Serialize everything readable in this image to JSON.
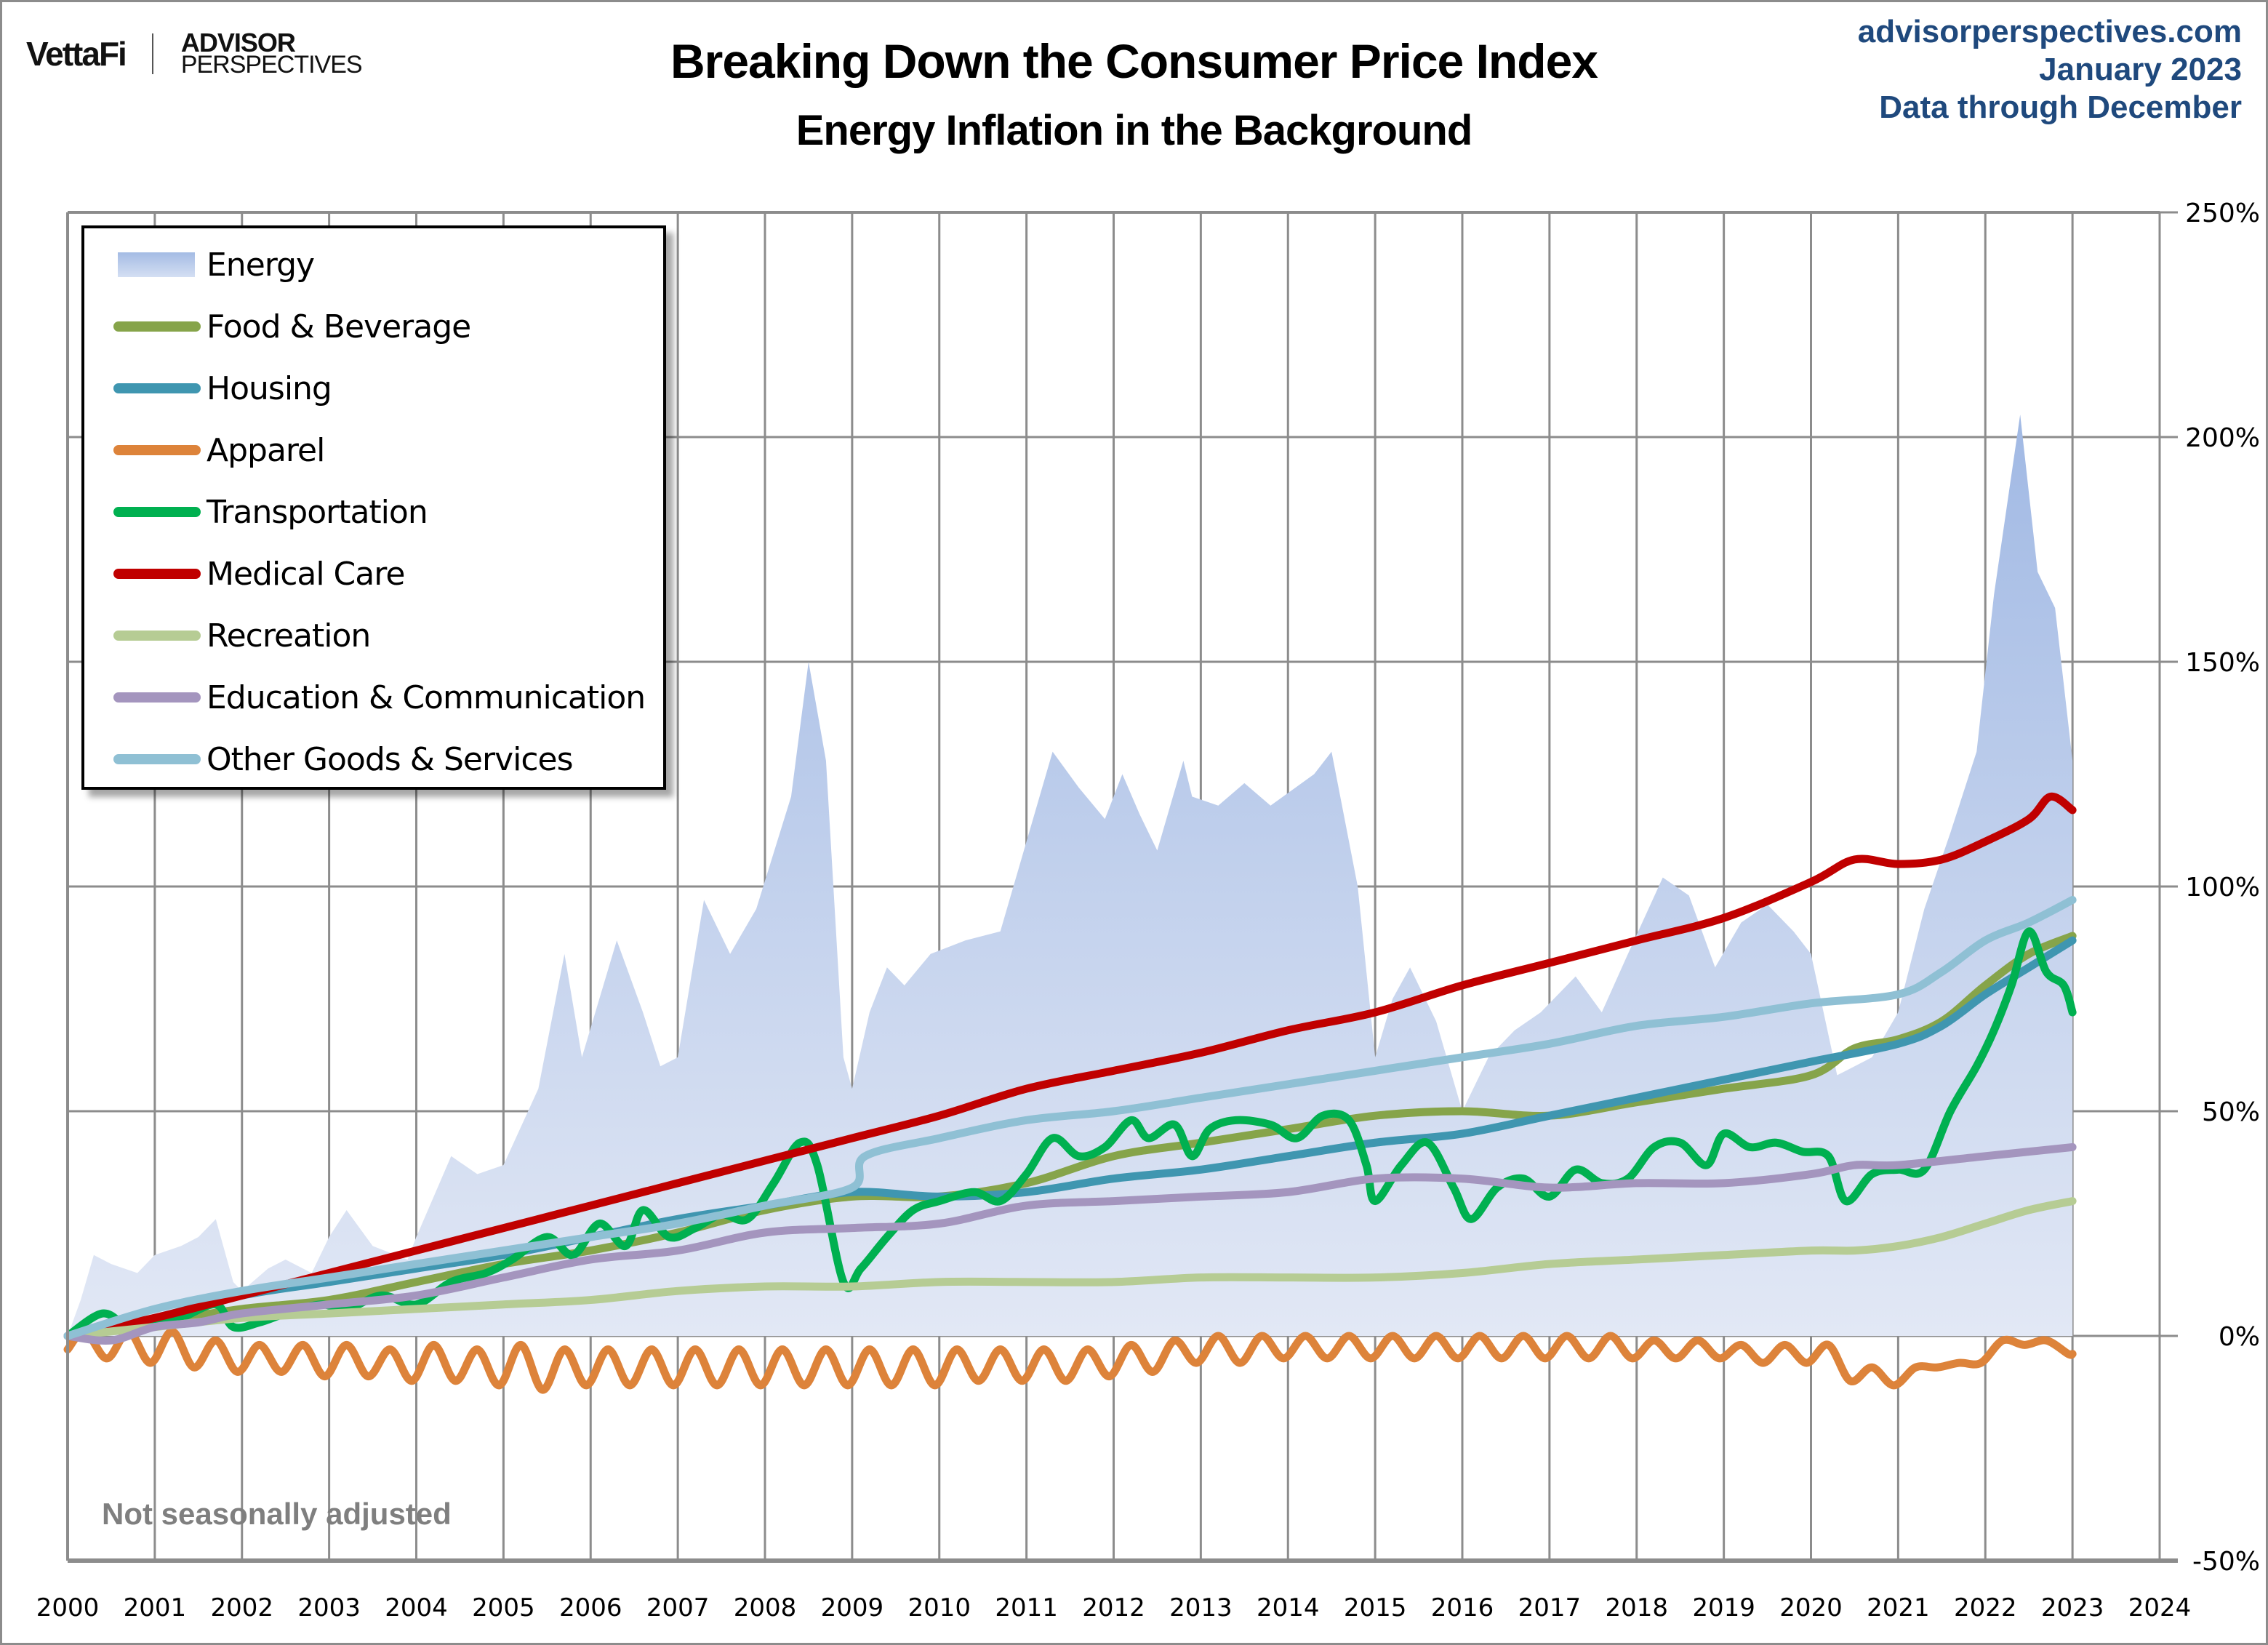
{
  "branding": {
    "vettafi": "VettaFi",
    "advisor_line1": "ADVISOR",
    "advisor_line2": "PERSPECTIVES"
  },
  "header": {
    "title": "Breaking Down the Consumer Price Index",
    "subtitle": "Energy Inflation in the Background",
    "source_lines": [
      "advisorperspectives.com",
      "January 2023",
      "Data through December"
    ]
  },
  "note": "Not seasonally adjusted",
  "chart_data": {
    "type": "line",
    "title": "Breaking Down the Consumer Price Index",
    "subtitle": "Energy Inflation in the Background",
    "xlabel": "",
    "ylabel": "",
    "xlim": [
      2000,
      2024
    ],
    "ylim": [
      -50,
      250
    ],
    "x_ticks": [
      "2000",
      "2001",
      "2002",
      "2003",
      "2004",
      "2005",
      "2006",
      "2007",
      "2008",
      "2009",
      "2010",
      "2011",
      "2012",
      "2013",
      "2014",
      "2015",
      "2016",
      "2017",
      "2018",
      "2019",
      "2020",
      "2021",
      "2022",
      "2023",
      "2024"
    ],
    "y_ticks": [
      "250%",
      "200%",
      "150%",
      "100%",
      "50%",
      "0%",
      "-50%"
    ],
    "y_tick_values": [
      250,
      200,
      150,
      100,
      50,
      0,
      -50
    ],
    "grid": true,
    "legend_position": "top-left",
    "series": [
      {
        "name": "Energy",
        "type": "area",
        "color": "#a4bbe4",
        "x": [
          2000,
          2000.15,
          2000.3,
          2000.5,
          2000.8,
          2001.0,
          2001.3,
          2001.5,
          2001.7,
          2001.9,
          2002.0,
          2002.3,
          2002.5,
          2002.8,
          2003.0,
          2003.2,
          2003.5,
          2003.9,
          2004.0,
          2004.4,
          2004.7,
          2005.0,
          2005.4,
          2005.7,
          2005.9,
          2006.3,
          2006.6,
          2006.8,
          2007.0,
          2007.3,
          2007.6,
          2007.9,
          2008.3,
          2008.5,
          2008.7,
          2008.9,
          2009.0,
          2009.2,
          2009.4,
          2009.6,
          2009.9,
          2010.3,
          2010.7,
          2011.0,
          2011.3,
          2011.6,
          2011.9,
          2012.1,
          2012.3,
          2012.5,
          2012.8,
          2012.9,
          2013.2,
          2013.5,
          2013.8,
          2014.3,
          2014.5,
          2014.8,
          2015.0,
          2015.2,
          2015.4,
          2015.7,
          2016.0,
          2016.3,
          2016.6,
          2016.9,
          2017.3,
          2017.6,
          2017.9,
          2018.3,
          2018.6,
          2018.9,
          2019.2,
          2019.5,
          2019.8,
          2020.0,
          2020.3,
          2020.7,
          2021.0,
          2021.3,
          2021.6,
          2021.9,
          2022.1,
          2022.4,
          2022.6,
          2022.8,
          2023.0
        ],
        "values": [
          0,
          8,
          18,
          16,
          14,
          18,
          20,
          22,
          26,
          12,
          10,
          15,
          17,
          14,
          22,
          28,
          20,
          17,
          22,
          40,
          36,
          38,
          55,
          85,
          62,
          88,
          72,
          60,
          62,
          97,
          85,
          95,
          120,
          150,
          128,
          62,
          55,
          72,
          82,
          78,
          85,
          88,
          90,
          110,
          130,
          122,
          115,
          125,
          116,
          108,
          128,
          120,
          118,
          123,
          118,
          125,
          130,
          100,
          62,
          75,
          82,
          70,
          50,
          62,
          68,
          72,
          80,
          72,
          85,
          102,
          98,
          82,
          92,
          96,
          90,
          85,
          58,
          62,
          72,
          95,
          112,
          130,
          165,
          205,
          170,
          162,
          128
        ]
      },
      {
        "name": "Food & Beverage",
        "type": "line",
        "color": "#86a44a",
        "x": [
          2000,
          2001,
          2002,
          2003,
          2004,
          2005,
          2006,
          2007,
          2008,
          2009,
          2010,
          2011,
          2012,
          2013,
          2014,
          2015,
          2016,
          2017,
          2018,
          2019,
          2020,
          2020.5,
          2021,
          2021.5,
          2022,
          2022.5,
          2023
        ],
        "values": [
          0,
          3,
          6,
          8,
          12,
          16,
          19,
          23,
          28,
          31,
          31,
          34,
          40,
          43,
          46,
          49,
          50,
          49,
          52,
          55,
          58,
          64,
          66,
          70,
          78,
          85,
          89
        ]
      },
      {
        "name": "Housing",
        "type": "line",
        "color": "#3f96b0",
        "x": [
          2000,
          2001,
          2002,
          2003,
          2004,
          2005,
          2006,
          2007,
          2008,
          2009,
          2010,
          2011,
          2012,
          2013,
          2014,
          2015,
          2016,
          2017,
          2018,
          2019,
          2020,
          2021,
          2021.5,
          2022,
          2022.5,
          2023
        ],
        "values": [
          0,
          4,
          9,
          12,
          15,
          18,
          22,
          26,
          29,
          32,
          31,
          32,
          35,
          37,
          40,
          43,
          45,
          49,
          53,
          57,
          61,
          65,
          69,
          76,
          82,
          88
        ]
      },
      {
        "name": "Apparel",
        "type": "line",
        "color": "#dd833a",
        "x": [
          2000,
          2000.2,
          2000.45,
          2000.7,
          2000.95,
          2001.2,
          2001.45,
          2001.7,
          2001.95,
          2002.2,
          2002.45,
          2002.7,
          2002.95,
          2003.2,
          2003.45,
          2003.7,
          2003.95,
          2004.2,
          2004.45,
          2004.7,
          2004.95,
          2005.2,
          2005.45,
          2005.7,
          2005.95,
          2006.2,
          2006.45,
          2006.7,
          2006.95,
          2007.2,
          2007.45,
          2007.7,
          2007.95,
          2008.2,
          2008.45,
          2008.7,
          2008.95,
          2009.2,
          2009.45,
          2009.7,
          2009.95,
          2010.2,
          2010.45,
          2010.7,
          2010.95,
          2011.2,
          2011.45,
          2011.7,
          2011.95,
          2012.2,
          2012.45,
          2012.7,
          2012.95,
          2013.2,
          2013.45,
          2013.7,
          2013.95,
          2014.2,
          2014.45,
          2014.7,
          2014.95,
          2015.2,
          2015.45,
          2015.7,
          2015.95,
          2016.2,
          2016.45,
          2016.7,
          2016.95,
          2017.2,
          2017.45,
          2017.7,
          2017.95,
          2018.2,
          2018.45,
          2018.7,
          2018.95,
          2019.2,
          2019.45,
          2019.7,
          2019.95,
          2020.2,
          2020.45,
          2020.7,
          2020.95,
          2021.2,
          2021.45,
          2021.7,
          2021.95,
          2022.2,
          2022.45,
          2022.7,
          2022.95,
          2023
        ],
        "values": [
          -3,
          1,
          -5,
          1,
          -6,
          1,
          -7,
          -1,
          -8,
          -2,
          -8,
          -2,
          -9,
          -2,
          -9,
          -3,
          -10,
          -2,
          -10,
          -3,
          -11,
          -2,
          -12,
          -3,
          -11,
          -3,
          -11,
          -3,
          -11,
          -3,
          -11,
          -3,
          -11,
          -3,
          -11,
          -3,
          -11,
          -3,
          -11,
          -3,
          -11,
          -3,
          -10,
          -3,
          -10,
          -3,
          -10,
          -3,
          -9,
          -2,
          -8,
          -1,
          -6,
          0,
          -6,
          0,
          -5,
          0,
          -5,
          0,
          -5,
          0,
          -5,
          0,
          -5,
          0,
          -5,
          0,
          -5,
          0,
          -5,
          0,
          -5,
          -1,
          -5,
          -1,
          -5,
          -2,
          -6,
          -2,
          -6,
          -2,
          -10,
          -7,
          -11,
          -7,
          -7,
          -6,
          -6,
          -1,
          -2,
          -1,
          -4,
          -4
        ]
      },
      {
        "name": "Transportation",
        "type": "line",
        "color": "#00b050",
        "x": [
          2000,
          2000.4,
          2000.7,
          2001.0,
          2001.3,
          2001.7,
          2001.9,
          2002.2,
          2002.5,
          2002.9,
          2003.2,
          2003.6,
          2004.0,
          2004.4,
          2004.8,
          2005.1,
          2005.5,
          2005.8,
          2006.1,
          2006.4,
          2006.6,
          2006.9,
          2007.2,
          2007.5,
          2007.8,
          2008.1,
          2008.4,
          2008.6,
          2008.9,
          2009.1,
          2009.4,
          2009.7,
          2010.0,
          2010.4,
          2010.7,
          2011.0,
          2011.3,
          2011.6,
          2011.9,
          2012.2,
          2012.4,
          2012.7,
          2012.9,
          2013.1,
          2013.4,
          2013.8,
          2014.1,
          2014.4,
          2014.7,
          2014.9,
          2015.0,
          2015.3,
          2015.6,
          2015.9,
          2016.1,
          2016.4,
          2016.7,
          2017.0,
          2017.3,
          2017.6,
          2017.9,
          2018.2,
          2018.5,
          2018.8,
          2019.0,
          2019.3,
          2019.6,
          2019.9,
          2020.2,
          2020.4,
          2020.7,
          2021.0,
          2021.3,
          2021.6,
          2021.9,
          2022.1,
          2022.3,
          2022.5,
          2022.7,
          2022.9,
          2023.0
        ],
        "values": [
          0,
          5,
          2,
          3,
          4,
          7,
          2,
          3,
          5,
          7,
          6,
          9,
          7,
          12,
          14,
          17,
          22,
          18,
          25,
          20,
          28,
          22,
          24,
          27,
          26,
          34,
          43,
          38,
          12,
          15,
          22,
          28,
          30,
          32,
          30,
          36,
          44,
          40,
          42,
          48,
          44,
          47,
          40,
          46,
          48,
          47,
          44,
          49,
          48,
          38,
          30,
          38,
          43,
          33,
          26,
          33,
          35,
          31,
          37,
          34,
          35,
          42,
          43,
          38,
          45,
          42,
          43,
          41,
          40,
          30,
          36,
          37,
          37,
          50,
          60,
          68,
          78,
          90,
          81,
          78,
          72
        ]
      },
      {
        "name": "Medical Care",
        "type": "line",
        "color": "#c00000",
        "x": [
          2000,
          2001,
          2002,
          2003,
          2004,
          2005,
          2006,
          2007,
          2008,
          2009,
          2010,
          2011,
          2012,
          2013,
          2014,
          2015,
          2016,
          2017,
          2018,
          2019,
          2020,
          2020.5,
          2021,
          2021.5,
          2022,
          2022.5,
          2022.75,
          2023
        ],
        "values": [
          0,
          4,
          9,
          14,
          19,
          24,
          29,
          34,
          39,
          44,
          49,
          55,
          59,
          63,
          68,
          72,
          78,
          83,
          88,
          93,
          101,
          106,
          105,
          106,
          110,
          115,
          120,
          117
        ]
      },
      {
        "name": "Recreation",
        "type": "line",
        "color": "#b6cc94",
        "x": [
          2000,
          2001,
          2002,
          2003,
          2004,
          2005,
          2006,
          2007,
          2008,
          2009,
          2010,
          2011,
          2012,
          2013,
          2014,
          2015,
          2016,
          2017,
          2018,
          2019,
          2020,
          2020.5,
          2021,
          2021.5,
          2022,
          2022.5,
          2023
        ],
        "values": [
          0,
          2,
          4,
          5,
          6,
          7,
          8,
          10,
          11,
          11,
          12,
          12,
          12,
          13,
          13,
          13,
          14,
          16,
          17,
          18,
          19,
          19,
          20,
          22,
          25,
          28,
          30
        ]
      },
      {
        "name": "Education & Communication",
        "type": "line",
        "color": "#a495be",
        "x": [
          2000,
          2000.5,
          2001,
          2001.5,
          2002,
          2003,
          2004,
          2005,
          2006,
          2007,
          2008,
          2009,
          2010,
          2011,
          2012,
          2013,
          2014,
          2015,
          2016,
          2017,
          2018,
          2019,
          2020,
          2020.5,
          2021,
          2022,
          2023
        ],
        "values": [
          0,
          -1,
          2,
          3,
          5,
          7,
          9,
          13,
          17,
          19,
          23,
          24,
          25,
          29,
          30,
          31,
          32,
          35,
          35,
          33,
          34,
          34,
          36,
          38,
          38,
          40,
          42
        ]
      },
      {
        "name": "Other Goods & Services",
        "type": "line",
        "color": "#8fc0d4",
        "x": [
          2000,
          2001,
          2002,
          2003,
          2004,
          2005,
          2006,
          2007,
          2008,
          2009,
          2009.15,
          2010,
          2011,
          2012,
          2013,
          2014,
          2015,
          2016,
          2017,
          2018,
          2019,
          2020,
          2021,
          2021.5,
          2022,
          2022.5,
          2023
        ],
        "values": [
          0,
          6,
          10,
          13,
          16,
          19,
          22,
          25,
          29,
          33,
          40,
          44,
          48,
          50,
          53,
          56,
          59,
          62,
          65,
          69,
          71,
          74,
          76,
          81,
          88,
          92,
          97
        ]
      }
    ]
  }
}
